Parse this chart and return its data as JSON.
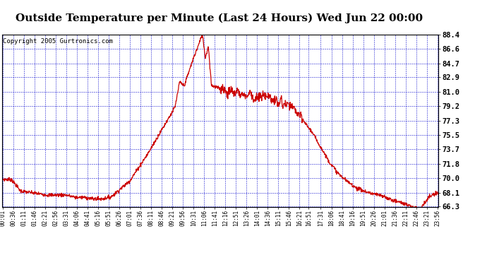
{
  "title": "Outside Temperature per Minute (Last 24 Hours) Wed Jun 22 00:00",
  "copyright": "Copyright 2005 Gurtronics.com",
  "ymin": 66.3,
  "ymax": 88.4,
  "ytick_values": [
    88.4,
    86.6,
    84.7,
    82.9,
    81.0,
    79.2,
    77.3,
    75.5,
    73.7,
    71.8,
    70.0,
    68.1,
    66.3
  ],
  "line_color": "#cc0000",
  "grid_color": "#0000cc",
  "background_color": "#ffffff",
  "title_fontsize": 11,
  "copyright_fontsize": 6.5,
  "xtick_labels": [
    "00:01",
    "00:36",
    "01:11",
    "01:46",
    "02:21",
    "02:56",
    "03:31",
    "04:06",
    "04:41",
    "05:16",
    "05:51",
    "06:26",
    "07:01",
    "07:36",
    "08:11",
    "08:46",
    "09:21",
    "09:56",
    "10:31",
    "11:06",
    "11:41",
    "12:16",
    "12:51",
    "13:26",
    "14:01",
    "14:36",
    "15:11",
    "15:46",
    "16:21",
    "16:51",
    "17:31",
    "18:06",
    "18:41",
    "19:16",
    "19:51",
    "20:26",
    "21:01",
    "21:36",
    "22:11",
    "22:46",
    "23:21",
    "23:56"
  ]
}
